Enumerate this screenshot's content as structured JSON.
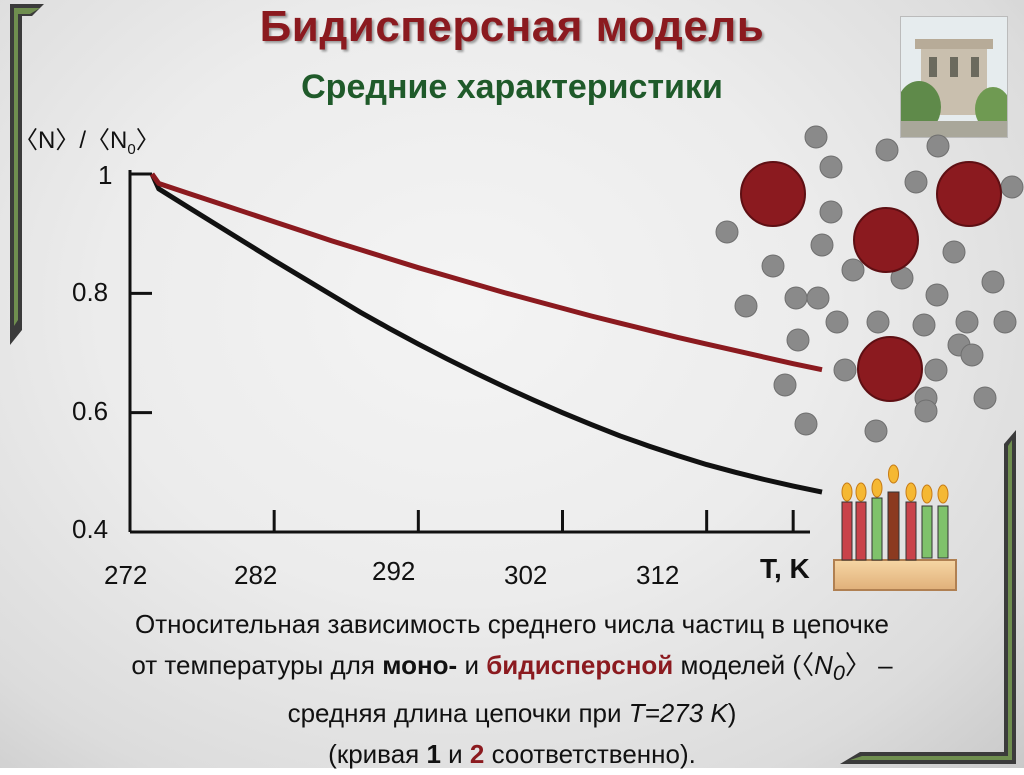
{
  "slide": {
    "title": "Бидисперсная модель",
    "subtitle": "Средние характеристики"
  },
  "chart_data": {
    "type": "line",
    "ylabel_parts": [
      "〈N〉",
      "/",
      "〈N",
      "0",
      "〉"
    ],
    "xlabel": "T, K",
    "xlim": [
      272,
      320
    ],
    "ylim": [
      0.4,
      1.0
    ],
    "x_ticks": [
      "272",
      "282",
      "292",
      "302",
      "312"
    ],
    "y_ticks": [
      "1",
      "0.8",
      "0.6",
      "0.4"
    ],
    "series": [
      {
        "color": "#111111",
        "x": [
          272,
          274,
          276,
          278,
          280,
          282,
          284,
          286,
          288,
          290,
          292,
          294,
          296,
          298,
          300,
          302,
          304,
          306,
          308,
          310,
          312,
          314,
          316,
          318,
          320
        ],
        "y": [
          1.0,
          0.975,
          0.945,
          0.915,
          0.885,
          0.855,
          0.826,
          0.797,
          0.768,
          0.741,
          0.715,
          0.69,
          0.666,
          0.643,
          0.621,
          0.6,
          0.58,
          0.561,
          0.544,
          0.528,
          0.513,
          0.5,
          0.488,
          0.477,
          0.467
        ]
      },
      {
        "color": "#8b1a1f",
        "x": [
          272,
          274,
          276,
          278,
          280,
          282,
          284,
          286,
          288,
          290,
          292,
          294,
          296,
          298,
          300,
          302,
          304,
          306,
          308,
          310,
          312,
          314,
          316,
          318,
          320
        ],
        "y": [
          1.0,
          0.984,
          0.968,
          0.952,
          0.936,
          0.92,
          0.904,
          0.888,
          0.873,
          0.858,
          0.843,
          0.829,
          0.815,
          0.801,
          0.788,
          0.775,
          0.762,
          0.75,
          0.738,
          0.726,
          0.715,
          0.704,
          0.693,
          0.682,
          0.672
        ]
      }
    ]
  },
  "caption": {
    "line1": "Относительная зависимость среднего числа частиц в цепочке",
    "line2_a": "от температуры для ",
    "line2_mono": "моно-",
    "line2_and": " и ",
    "line2_bi": "бидисперсной",
    "line2_b": " моделей (〈",
    "line2_N": "N",
    "line2_0": "0",
    "line2_c": "〉 –",
    "line3_a": "средняя длина цепочки при ",
    "line3_T": "T=273 K",
    "line3_b": ")",
    "line4_a": "(кривая ",
    "line4_1": "1",
    "line4_and": " и ",
    "line4_2": "2",
    "line4_b": " соответственно)."
  },
  "decor": {
    "large_particle_color": "#8b1a1f",
    "small_particle_color": "#8a8a8a",
    "candle_colors": [
      "#c9424a",
      "#7fc26b",
      "#8b3a20"
    ]
  }
}
